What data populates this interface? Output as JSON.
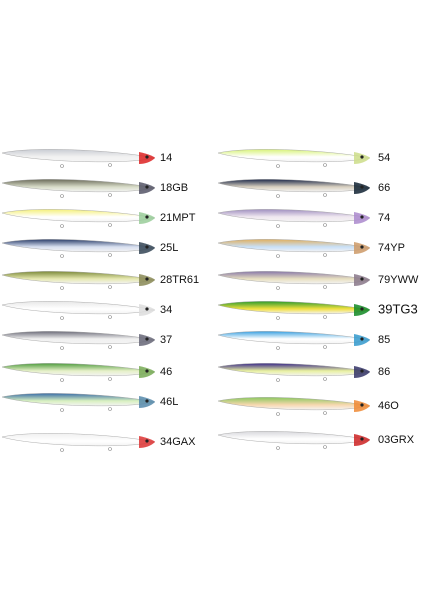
{
  "left": [
    "14",
    "18GB",
    "21MPT",
    "25L",
    "28TR61",
    "34",
    "37",
    "46",
    "46L",
    "34GAX"
  ],
  "right": [
    "54",
    "66",
    "74",
    "74YP",
    "79YWW",
    "39TG3",
    "85",
    "86",
    "46O",
    "03GRX"
  ]
}
